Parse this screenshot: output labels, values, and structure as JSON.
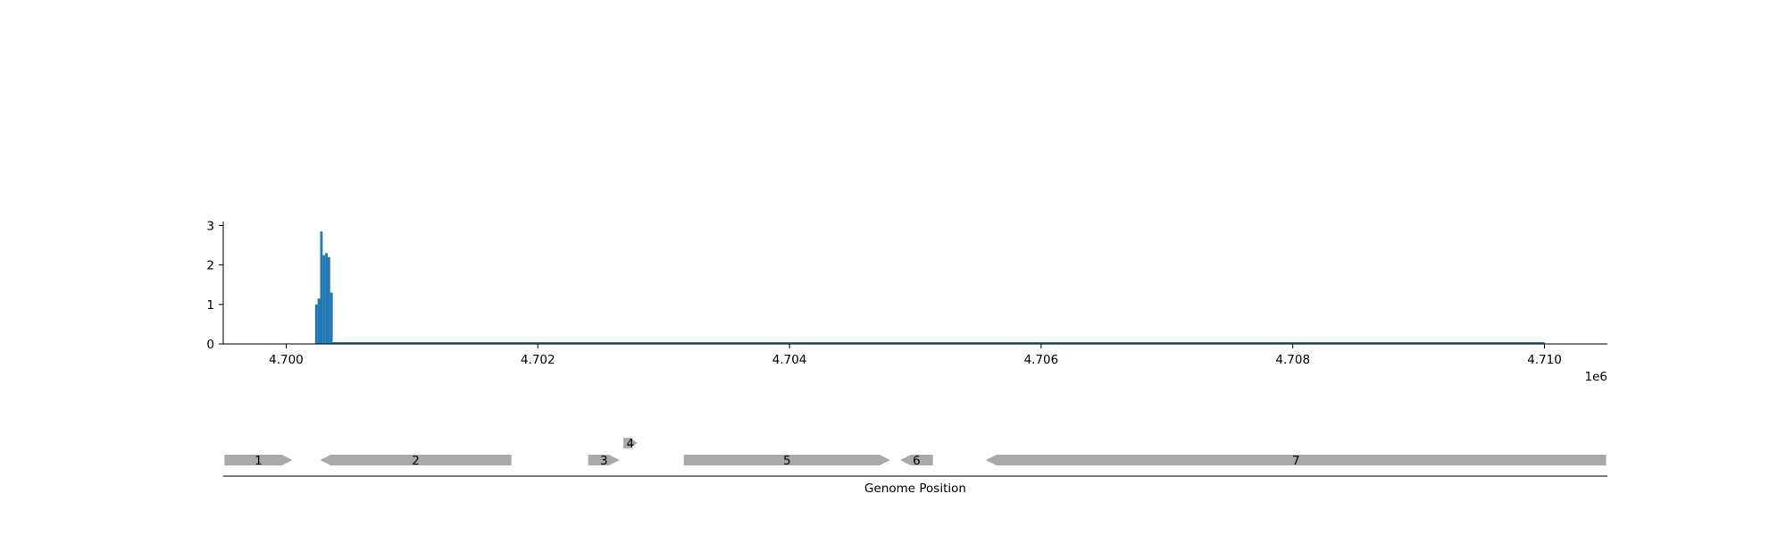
{
  "colors": {
    "bar": "#1f77b4",
    "gene": "#a9a9a9",
    "axis": "#000000",
    "background": "#ffffff"
  },
  "chart_data": [
    {
      "type": "bar",
      "title": "",
      "xlabel": "",
      "ylabel": "",
      "x_offset_label": "1e6",
      "xlim": [
        4699500,
        4710500
      ],
      "ylim": [
        0,
        3.1
      ],
      "x_ticks": [
        4700000,
        4702000,
        4704000,
        4706000,
        4708000,
        4710000
      ],
      "x_tick_labels": [
        "4.700",
        "4.702",
        "4.704",
        "4.706",
        "4.708",
        "4.710"
      ],
      "y_ticks": [
        0,
        1,
        2,
        3
      ],
      "y_tick_labels": [
        "0",
        "1",
        "2",
        "3"
      ],
      "grid": false,
      "bar_width": 20,
      "bars": [
        {
          "x": 4700240,
          "y": 1.0
        },
        {
          "x": 4700260,
          "y": 1.15
        },
        {
          "x": 4700280,
          "y": 2.85
        },
        {
          "x": 4700300,
          "y": 2.25
        },
        {
          "x": 4700320,
          "y": 2.3
        },
        {
          "x": 4700340,
          "y": 2.2
        },
        {
          "x": 4700360,
          "y": 1.3
        }
      ],
      "baseline_series": {
        "x_start": 4700370,
        "x_end": 4710000,
        "y": 0
      }
    },
    {
      "type": "gene_track",
      "xlabel": "Genome Position",
      "xlim": [
        4699500,
        4710500
      ],
      "genes": [
        {
          "label": "1",
          "start": 4699510,
          "end": 4700050,
          "strand": "+",
          "row": 0
        },
        {
          "label": "2",
          "start": 4700270,
          "end": 4701790,
          "strand": "-",
          "row": 0
        },
        {
          "label": "3",
          "start": 4702400,
          "end": 4702650,
          "strand": "+",
          "row": 0
        },
        {
          "label": "4",
          "start": 4702680,
          "end": 4702790,
          "strand": "+",
          "row": 1
        },
        {
          "label": "5",
          "start": 4703160,
          "end": 4704800,
          "strand": "+",
          "row": 0
        },
        {
          "label": "6",
          "start": 4704880,
          "end": 4705140,
          "strand": "-",
          "row": 0
        },
        {
          "label": "7",
          "start": 4705560,
          "end": 4710490,
          "strand": "-",
          "row": 0
        }
      ]
    }
  ]
}
